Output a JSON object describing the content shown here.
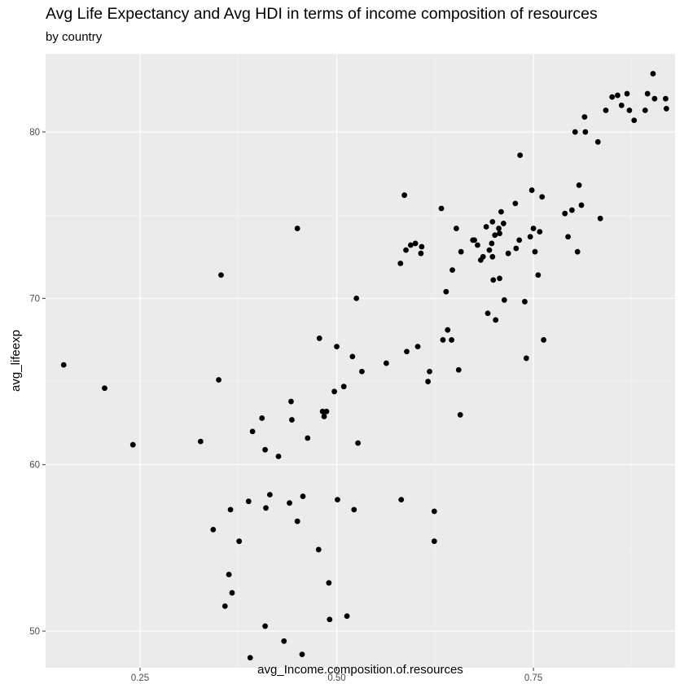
{
  "chart_data": {
    "type": "scatter",
    "title": "Avg Life Expectancy and Avg HDI in terms of income composition of resources",
    "subtitle": "by country",
    "xlabel": "avg_Income.composition.of.resources",
    "ylabel": "avg_lifeexp",
    "xlim": [
      0.13,
      0.93
    ],
    "ylim": [
      47.8,
      84.7
    ],
    "x_ticks": [
      0.25,
      0.5,
      0.75
    ],
    "x_tick_labels": [
      "0.25",
      "0.50",
      "0.75"
    ],
    "y_ticks": [
      50,
      60,
      70,
      80
    ],
    "y_tick_labels": [
      "50",
      "60",
      "70",
      "80"
    ],
    "grid": true,
    "legend": "none",
    "colors": {
      "panel": "#ebebeb",
      "grid_major": "#ffffff",
      "grid_minor": "#f5f5f5",
      "point": "#000000"
    },
    "points": [
      [
        0.153,
        66.0
      ],
      [
        0.205,
        64.6
      ],
      [
        0.241,
        61.2
      ],
      [
        0.327,
        61.4
      ],
      [
        0.343,
        56.1
      ],
      [
        0.35,
        65.1
      ],
      [
        0.353,
        71.4
      ],
      [
        0.358,
        51.5
      ],
      [
        0.363,
        53.4
      ],
      [
        0.365,
        57.3
      ],
      [
        0.367,
        52.3
      ],
      [
        0.376,
        55.4
      ],
      [
        0.388,
        57.8
      ],
      [
        0.39,
        48.4
      ],
      [
        0.393,
        62.0
      ],
      [
        0.405,
        62.8
      ],
      [
        0.409,
        60.9
      ],
      [
        0.409,
        50.3
      ],
      [
        0.41,
        57.4
      ],
      [
        0.415,
        58.2
      ],
      [
        0.426,
        60.5
      ],
      [
        0.433,
        49.4
      ],
      [
        0.44,
        57.7
      ],
      [
        0.442,
        63.8
      ],
      [
        0.443,
        62.7
      ],
      [
        0.45,
        74.2
      ],
      [
        0.45,
        56.6
      ],
      [
        0.456,
        48.6
      ],
      [
        0.457,
        58.1
      ],
      [
        0.463,
        61.6
      ],
      [
        0.477,
        54.9
      ],
      [
        0.478,
        67.6
      ],
      [
        0.482,
        63.2
      ],
      [
        0.484,
        62.9
      ],
      [
        0.487,
        63.2
      ],
      [
        0.49,
        52.9
      ],
      [
        0.491,
        50.7
      ],
      [
        0.497,
        64.4
      ],
      [
        0.5,
        67.1
      ],
      [
        0.501,
        57.9
      ],
      [
        0.509,
        64.7
      ],
      [
        0.513,
        50.9
      ],
      [
        0.52,
        66.5
      ],
      [
        0.522,
        57.3
      ],
      [
        0.525,
        70.0
      ],
      [
        0.527,
        61.3
      ],
      [
        0.532,
        65.6
      ],
      [
        0.563,
        66.1
      ],
      [
        0.581,
        72.1
      ],
      [
        0.582,
        57.9
      ],
      [
        0.586,
        76.2
      ],
      [
        0.588,
        72.9
      ],
      [
        0.589,
        66.8
      ],
      [
        0.594,
        73.2
      ],
      [
        0.6,
        73.3
      ],
      [
        0.603,
        67.1
      ],
      [
        0.607,
        72.7
      ],
      [
        0.608,
        73.1
      ],
      [
        0.616,
        65.0
      ],
      [
        0.618,
        65.6
      ],
      [
        0.624,
        57.2
      ],
      [
        0.624,
        55.4
      ],
      [
        0.633,
        75.4
      ],
      [
        0.635,
        67.5
      ],
      [
        0.639,
        70.4
      ],
      [
        0.641,
        68.1
      ],
      [
        0.646,
        67.5
      ],
      [
        0.647,
        71.7
      ],
      [
        0.652,
        74.2
      ],
      [
        0.655,
        65.7
      ],
      [
        0.657,
        63.0
      ],
      [
        0.658,
        72.8
      ],
      [
        0.673,
        73.5
      ],
      [
        0.675,
        73.5
      ],
      [
        0.679,
        73.2
      ],
      [
        0.683,
        72.3
      ],
      [
        0.686,
        72.5
      ],
      [
        0.69,
        74.3
      ],
      [
        0.692,
        69.1
      ],
      [
        0.694,
        72.9
      ],
      [
        0.697,
        73.3
      ],
      [
        0.698,
        74.6
      ],
      [
        0.698,
        72.5
      ],
      [
        0.699,
        71.1
      ],
      [
        0.701,
        73.8
      ],
      [
        0.702,
        68.7
      ],
      [
        0.706,
        74.2
      ],
      [
        0.707,
        73.9
      ],
      [
        0.707,
        71.2
      ],
      [
        0.709,
        75.2
      ],
      [
        0.712,
        74.5
      ],
      [
        0.713,
        69.9
      ],
      [
        0.718,
        72.7
      ],
      [
        0.727,
        75.7
      ],
      [
        0.728,
        73.0
      ],
      [
        0.732,
        73.5
      ],
      [
        0.733,
        78.6
      ],
      [
        0.739,
        69.8
      ],
      [
        0.741,
        66.4
      ],
      [
        0.746,
        73.7
      ],
      [
        0.748,
        76.5
      ],
      [
        0.75,
        74.2
      ],
      [
        0.752,
        72.8
      ],
      [
        0.756,
        71.4
      ],
      [
        0.758,
        74.0
      ],
      [
        0.761,
        76.1
      ],
      [
        0.763,
        67.5
      ],
      [
        0.79,
        75.1
      ],
      [
        0.794,
        73.7
      ],
      [
        0.799,
        75.3
      ],
      [
        0.803,
        80.0
      ],
      [
        0.806,
        72.8
      ],
      [
        0.808,
        76.8
      ],
      [
        0.811,
        75.6
      ],
      [
        0.815,
        80.9
      ],
      [
        0.816,
        80.0
      ],
      [
        0.832,
        79.4
      ],
      [
        0.835,
        74.8
      ],
      [
        0.842,
        81.3
      ],
      [
        0.85,
        82.1
      ],
      [
        0.857,
        82.2
      ],
      [
        0.862,
        81.6
      ],
      [
        0.869,
        82.3
      ],
      [
        0.872,
        81.3
      ],
      [
        0.878,
        80.7
      ],
      [
        0.892,
        81.3
      ],
      [
        0.895,
        82.3
      ],
      [
        0.902,
        83.5
      ],
      [
        0.904,
        82.0
      ],
      [
        0.918,
        82.0
      ],
      [
        0.919,
        81.4
      ]
    ]
  }
}
